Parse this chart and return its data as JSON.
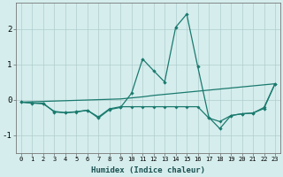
{
  "xlabel": "Humidex (Indice chaleur)",
  "x": [
    0,
    1,
    2,
    3,
    4,
    5,
    6,
    7,
    8,
    9,
    10,
    11,
    12,
    13,
    14,
    15,
    16,
    17,
    18,
    19,
    20,
    21,
    22,
    23
  ],
  "line1": [
    -0.07,
    -0.1,
    -0.1,
    -0.35,
    -0.37,
    -0.34,
    -0.3,
    -0.52,
    -0.28,
    -0.22,
    0.18,
    1.15,
    0.82,
    0.5,
    2.05,
    2.42,
    0.93,
    -0.5,
    -0.82,
    -0.45,
    -0.4,
    -0.38,
    -0.25,
    0.45
  ],
  "line2": [
    -0.07,
    -0.06,
    -0.05,
    -0.04,
    -0.03,
    -0.02,
    -0.01,
    0.0,
    0.01,
    0.02,
    0.05,
    0.08,
    0.12,
    0.15,
    0.18,
    0.21,
    0.24,
    0.27,
    0.3,
    0.33,
    0.36,
    0.39,
    0.42,
    0.45
  ],
  "line3": [
    -0.07,
    -0.09,
    -0.12,
    -0.33,
    -0.37,
    -0.35,
    -0.3,
    -0.49,
    -0.26,
    -0.2,
    -0.2,
    -0.2,
    -0.2,
    -0.2,
    -0.2,
    -0.2,
    -0.2,
    -0.52,
    -0.62,
    -0.45,
    -0.4,
    -0.38,
    -0.22,
    0.45
  ],
  "bg_color": "#d5eded",
  "grid_color": "#b0cccc",
  "line_color": "#1a7a6e",
  "ylim": [
    -1.5,
    2.75
  ],
  "yticks": [
    -1,
    0,
    1,
    2
  ],
  "xticks": [
    0,
    1,
    2,
    3,
    4,
    5,
    6,
    7,
    8,
    9,
    10,
    11,
    12,
    13,
    14,
    15,
    16,
    17,
    18,
    19,
    20,
    21,
    22,
    23
  ]
}
